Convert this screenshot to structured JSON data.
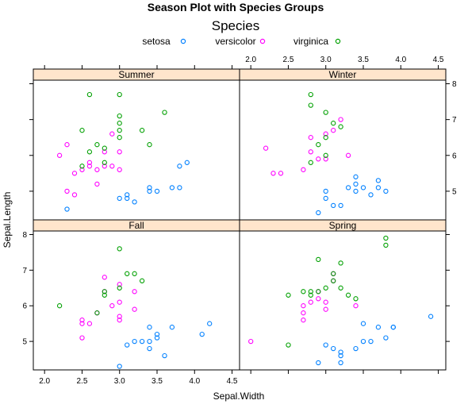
{
  "chart_data": {
    "type": "scatter",
    "title": "Season Plot with Species Groups",
    "xlabel": "Sepal.Width",
    "ylabel": "Sepal.Length",
    "xlim": [
      1.85,
      4.6
    ],
    "ylim": [
      4.2,
      8.1
    ],
    "x_ticks": [
      "2.0",
      "2.5",
      "3.0",
      "3.5",
      "4.0",
      "4.5"
    ],
    "x_tick_values": [
      2.0,
      2.5,
      3.0,
      3.5,
      4.0,
      4.5
    ],
    "y_ticks": [
      "5",
      "6",
      "7",
      "8"
    ],
    "y_tick_values": [
      5,
      6,
      7,
      8
    ],
    "legend": {
      "title": "Species",
      "placement": "top",
      "entries": [
        {
          "name": "setosa",
          "color": "#0080ff"
        },
        {
          "name": "versicolor",
          "color": "#ff00ff"
        },
        {
          "name": "virginica",
          "color": "#00a000"
        }
      ]
    },
    "panels": [
      {
        "name": "Summer",
        "series": [
          {
            "name": "setosa",
            "points": [
              [
                2.3,
                4.5
              ],
              [
                3.0,
                4.8
              ],
              [
                3.1,
                4.8
              ],
              [
                3.1,
                4.9
              ],
              [
                3.2,
                4.7
              ],
              [
                3.4,
                5.1
              ],
              [
                3.4,
                5.0
              ],
              [
                3.5,
                5.0
              ],
              [
                3.8,
                5.7
              ],
              [
                3.9,
                5.8
              ],
              [
                3.8,
                5.1
              ],
              [
                3.7,
                5.1
              ]
            ]
          },
          {
            "name": "versicolor",
            "points": [
              [
                2.2,
                6.0
              ],
              [
                2.3,
                6.3
              ],
              [
                2.3,
                5.0
              ],
              [
                2.4,
                4.9
              ],
              [
                2.4,
                5.5
              ],
              [
                2.5,
                5.6
              ],
              [
                2.6,
                5.7
              ],
              [
                2.6,
                5.8
              ],
              [
                2.7,
                5.6
              ],
              [
                2.7,
                5.2
              ],
              [
                2.8,
                5.7
              ],
              [
                2.8,
                6.1
              ],
              [
                2.9,
                5.7
              ],
              [
                2.9,
                6.6
              ],
              [
                3.0,
                6.1
              ],
              [
                3.0,
                5.6
              ]
            ]
          },
          {
            "name": "virginica",
            "points": [
              [
                2.5,
                6.7
              ],
              [
                2.5,
                5.7
              ],
              [
                2.6,
                6.1
              ],
              [
                2.6,
                7.7
              ],
              [
                2.7,
                6.3
              ],
              [
                2.8,
                6.2
              ],
              [
                2.8,
                5.8
              ],
              [
                3.0,
                7.7
              ],
              [
                3.0,
                7.1
              ],
              [
                3.0,
                6.9
              ],
              [
                3.0,
                6.7
              ],
              [
                3.0,
                6.5
              ],
              [
                3.3,
                6.7
              ],
              [
                3.4,
                6.3
              ],
              [
                3.6,
                7.2
              ]
            ]
          }
        ]
      },
      {
        "name": "Winter",
        "series": [
          {
            "name": "setosa",
            "points": [
              [
                2.9,
                4.4
              ],
              [
                3.0,
                4.8
              ],
              [
                3.0,
                5.0
              ],
              [
                3.1,
                4.6
              ],
              [
                3.2,
                4.6
              ],
              [
                3.3,
                5.1
              ],
              [
                3.4,
                5.2
              ],
              [
                3.4,
                5.4
              ],
              [
                3.4,
                5.0
              ],
              [
                3.5,
                5.1
              ],
              [
                3.6,
                4.9
              ],
              [
                3.7,
                5.3
              ],
              [
                3.7,
                5.1
              ],
              [
                3.8,
                5.0
              ]
            ]
          },
          {
            "name": "versicolor",
            "points": [
              [
                2.2,
                6.2
              ],
              [
                2.3,
                5.5
              ],
              [
                2.4,
                5.5
              ],
              [
                2.7,
                5.6
              ],
              [
                2.8,
                6.1
              ],
              [
                2.8,
                6.5
              ],
              [
                2.9,
                5.9
              ],
              [
                3.0,
                6.6
              ],
              [
                3.0,
                5.9
              ],
              [
                3.1,
                6.7
              ],
              [
                3.2,
                7.0
              ],
              [
                3.3,
                6.0
              ]
            ]
          },
          {
            "name": "virginica",
            "points": [
              [
                2.8,
                7.7
              ],
              [
                2.8,
                7.4
              ],
              [
                2.8,
                5.8
              ],
              [
                2.9,
                6.3
              ],
              [
                3.0,
                7.2
              ],
              [
                3.0,
                6.0
              ],
              [
                3.0,
                6.5
              ],
              [
                3.1,
                6.9
              ],
              [
                3.2,
                6.8
              ]
            ]
          }
        ]
      },
      {
        "name": "Fall",
        "series": [
          {
            "name": "setosa",
            "points": [
              [
                3.0,
                4.3
              ],
              [
                3.1,
                4.9
              ],
              [
                3.2,
                5.0
              ],
              [
                3.3,
                5.0
              ],
              [
                3.4,
                5.0
              ],
              [
                3.4,
                4.8
              ],
              [
                3.4,
                5.4
              ],
              [
                3.5,
                5.2
              ],
              [
                3.5,
                5.1
              ],
              [
                3.6,
                4.6
              ],
              [
                3.7,
                5.4
              ],
              [
                4.1,
                5.2
              ],
              [
                4.2,
                5.5
              ]
            ]
          },
          {
            "name": "versicolor",
            "points": [
              [
                2.5,
                5.1
              ],
              [
                2.5,
                5.5
              ],
              [
                2.5,
                5.6
              ],
              [
                2.6,
                5.5
              ],
              [
                2.7,
                5.8
              ],
              [
                2.8,
                6.4
              ],
              [
                2.8,
                6.8
              ],
              [
                2.9,
                6.0
              ],
              [
                3.0,
                5.7
              ],
              [
                3.0,
                5.6
              ],
              [
                3.0,
                6.1
              ],
              [
                3.0,
                6.6
              ],
              [
                3.2,
                5.9
              ],
              [
                3.2,
                6.4
              ]
            ]
          },
          {
            "name": "virginica",
            "points": [
              [
                2.2,
                6.0
              ],
              [
                2.7,
                5.8
              ],
              [
                2.8,
                6.3
              ],
              [
                2.8,
                6.4
              ],
              [
                3.0,
                6.5
              ],
              [
                3.0,
                7.6
              ],
              [
                3.1,
                6.9
              ],
              [
                3.2,
                6.9
              ],
              [
                3.3,
                6.7
              ]
            ]
          }
        ]
      },
      {
        "name": "Spring",
        "series": [
          {
            "name": "setosa",
            "points": [
              [
                2.9,
                4.4
              ],
              [
                3.0,
                4.9
              ],
              [
                3.1,
                4.8
              ],
              [
                3.2,
                4.4
              ],
              [
                3.2,
                4.6
              ],
              [
                3.2,
                4.7
              ],
              [
                3.4,
                4.8
              ],
              [
                3.5,
                5.0
              ],
              [
                3.5,
                5.5
              ],
              [
                3.6,
                5.0
              ],
              [
                3.7,
                5.4
              ],
              [
                3.8,
                5.1
              ],
              [
                3.9,
                5.4
              ],
              [
                3.9,
                5.4
              ],
              [
                4.4,
                5.7
              ]
            ]
          },
          {
            "name": "versicolor",
            "points": [
              [
                2.0,
                5.0
              ],
              [
                2.7,
                6.0
              ],
              [
                2.7,
                5.8
              ],
              [
                2.7,
                5.6
              ],
              [
                2.8,
                6.1
              ],
              [
                2.9,
                6.2
              ],
              [
                2.9,
                6.4
              ],
              [
                3.0,
                5.9
              ],
              [
                3.0,
                6.1
              ],
              [
                3.1,
                6.7
              ],
              [
                3.1,
                6.9
              ],
              [
                3.4,
                6.0
              ]
            ]
          },
          {
            "name": "virginica",
            "points": [
              [
                2.5,
                4.9
              ],
              [
                2.5,
                6.3
              ],
              [
                2.7,
                6.4
              ],
              [
                2.8,
                6.4
              ],
              [
                2.8,
                6.3
              ],
              [
                2.9,
                7.3
              ],
              [
                2.9,
                6.4
              ],
              [
                3.0,
                6.5
              ],
              [
                3.1,
                6.7
              ],
              [
                3.1,
                6.9
              ],
              [
                3.2,
                6.5
              ],
              [
                3.2,
                7.2
              ],
              [
                3.3,
                6.3
              ],
              [
                3.4,
                6.2
              ],
              [
                3.8,
                7.7
              ],
              [
                3.8,
                7.9
              ]
            ]
          }
        ]
      }
    ]
  }
}
